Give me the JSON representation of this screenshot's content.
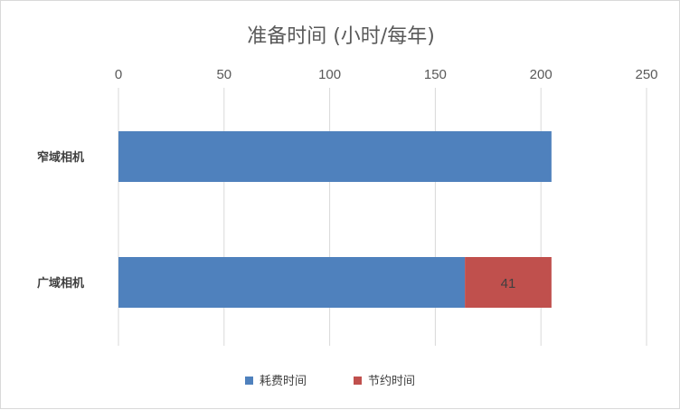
{
  "chart_data": {
    "type": "bar",
    "orientation": "horizontal",
    "stacked": true,
    "title": "准备时间 (小时/每年)",
    "categories": [
      "窄域相机",
      "广域相机"
    ],
    "series": [
      {
        "name": "耗费时间",
        "values": [
          205,
          164
        ],
        "color": "#4f81bd"
      },
      {
        "name": "节约时间",
        "values": [
          0,
          41
        ],
        "color": "#c0504d",
        "data_labels": [
          null,
          "41"
        ]
      }
    ],
    "xlim": [
      0,
      250
    ],
    "xticks": [
      "0",
      "50",
      "100",
      "150",
      "200",
      "250"
    ],
    "axis_position": "top",
    "grid": true,
    "legend_position": "bottom"
  }
}
